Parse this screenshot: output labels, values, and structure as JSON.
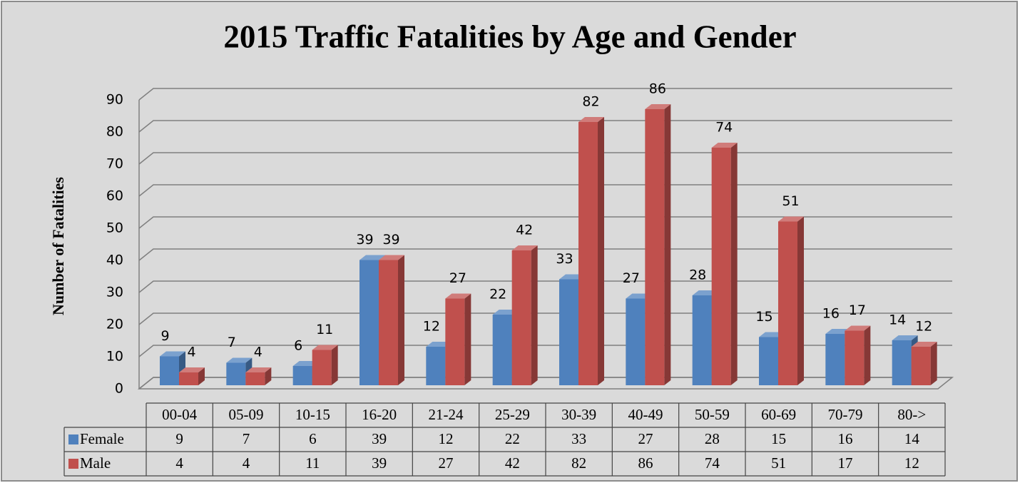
{
  "chart_data": {
    "type": "bar3d",
    "title": "2015 Traffic Fatalities by Age and Gender",
    "y_label": "Number of Fatalities",
    "categories": [
      "00-04",
      "05-09",
      "10-15",
      "16-20",
      "21-24",
      "25-29",
      "30-39",
      "40-49",
      "50-59",
      "60-69",
      "70-79",
      "80->"
    ],
    "series": [
      {
        "name": "Female",
        "color": "#4f81bd",
        "values": [
          9,
          7,
          6,
          39,
          12,
          22,
          33,
          27,
          28,
          15,
          16,
          14
        ]
      },
      {
        "name": "Male",
        "color": "#c0504d",
        "values": [
          4,
          4,
          11,
          39,
          27,
          42,
          82,
          86,
          74,
          51,
          17,
          12
        ]
      }
    ],
    "ylim": [
      0,
      90
    ],
    "yticks": [
      0,
      10,
      20,
      30,
      40,
      50,
      60,
      70,
      80,
      90
    ],
    "grid": true,
    "data_table": true
  }
}
